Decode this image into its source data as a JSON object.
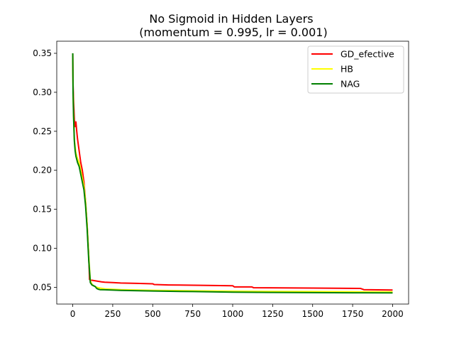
{
  "chart_data": {
    "type": "line",
    "title": "No Sigmoid in Hidden Layers",
    "subtitle": "(momentum = 0.995, lr = 0.001)",
    "xlabel": "",
    "ylabel": "",
    "xlim": [
      -100,
      2100
    ],
    "ylim": [
      0.0285,
      0.3655
    ],
    "xticks": [
      0,
      250,
      500,
      750,
      1000,
      1250,
      1500,
      1750,
      2000
    ],
    "yticks": [
      0.05,
      0.1,
      0.15,
      0.2,
      0.25,
      0.3,
      0.35
    ],
    "ytick_labels": [
      "0.05",
      "0.10",
      "0.15",
      "0.20",
      "0.25",
      "0.30",
      "0.35"
    ],
    "grid": false,
    "legend_position": "top-right",
    "series": [
      {
        "name": "GD_efective",
        "color": "#ff0000",
        "x": [
          0,
          2,
          5,
          10,
          15,
          20,
          25,
          30,
          40,
          50,
          60,
          70,
          80,
          90,
          100,
          105,
          110,
          115,
          120,
          150,
          180,
          200,
          250,
          300,
          400,
          500,
          510,
          600,
          800,
          1000,
          1010,
          1120,
          1130,
          1500,
          1800,
          1820,
          2000
        ],
        "y": [
          0.35,
          0.31,
          0.29,
          0.265,
          0.256,
          0.262,
          0.25,
          0.24,
          0.225,
          0.21,
          0.2,
          0.185,
          0.16,
          0.13,
          0.09,
          0.06,
          0.059,
          0.059,
          0.059,
          0.058,
          0.057,
          0.0565,
          0.056,
          0.0555,
          0.055,
          0.0545,
          0.0535,
          0.053,
          0.0525,
          0.052,
          0.0505,
          0.0505,
          0.0495,
          0.049,
          0.0485,
          0.047,
          0.0465
        ]
      },
      {
        "name": "HB",
        "color": "#ffff00",
        "x": [
          0,
          2,
          5,
          10,
          15,
          20,
          30,
          40,
          50,
          60,
          70,
          80,
          90,
          100,
          110,
          120,
          130,
          140,
          150,
          160,
          170,
          200,
          300,
          500,
          750,
          1000,
          1250,
          1500,
          1750,
          2000
        ],
        "y": [
          0.35,
          0.3,
          0.27,
          0.24,
          0.23,
          0.222,
          0.215,
          0.21,
          0.2,
          0.19,
          0.18,
          0.16,
          0.13,
          0.09,
          0.058,
          0.054,
          0.052,
          0.051,
          0.05,
          0.0495,
          0.049,
          0.048,
          0.047,
          0.0462,
          0.0455,
          0.045,
          0.0447,
          0.0445,
          0.0443,
          0.0441
        ]
      },
      {
        "name": "NAG",
        "color": "#008000",
        "x": [
          0,
          2,
          5,
          10,
          15,
          20,
          30,
          40,
          50,
          60,
          70,
          80,
          90,
          100,
          110,
          120,
          130,
          140,
          150,
          160,
          170,
          200,
          300,
          500,
          750,
          1000,
          1250,
          1500,
          1750,
          2000
        ],
        "y": [
          0.35,
          0.3,
          0.27,
          0.238,
          0.225,
          0.218,
          0.21,
          0.205,
          0.195,
          0.185,
          0.175,
          0.155,
          0.125,
          0.085,
          0.056,
          0.053,
          0.052,
          0.051,
          0.0485,
          0.0475,
          0.047,
          0.0468,
          0.046,
          0.0452,
          0.0445,
          0.0438,
          0.0434,
          0.0432,
          0.043,
          0.0428
        ]
      }
    ]
  }
}
